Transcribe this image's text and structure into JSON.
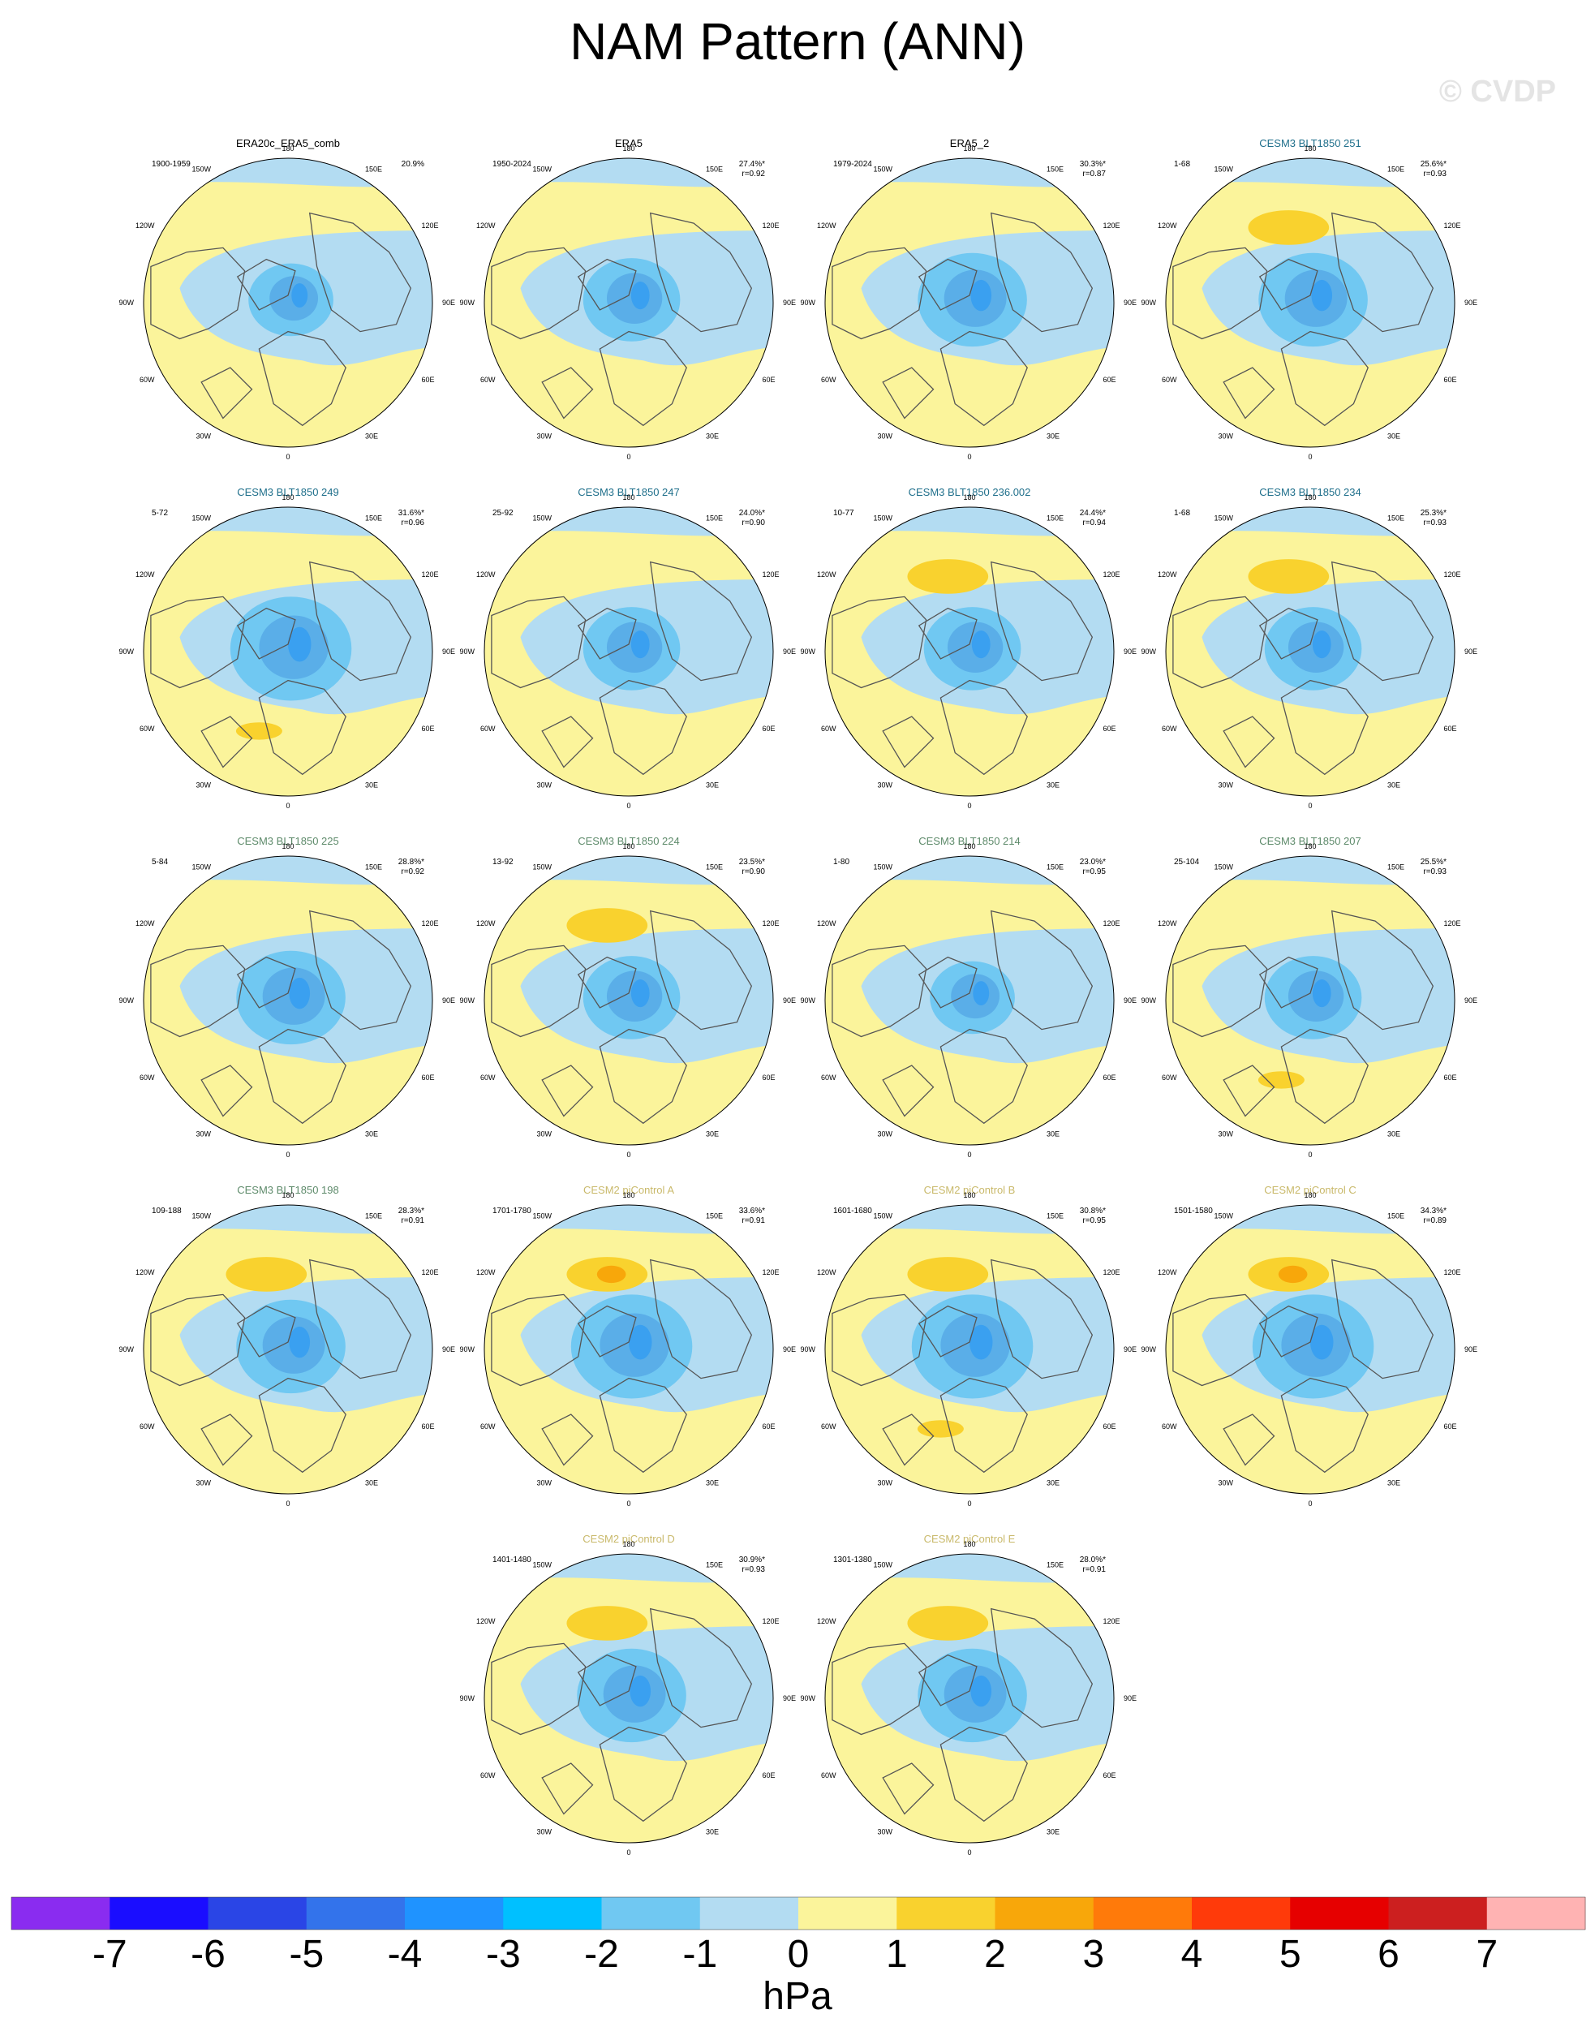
{
  "page": {
    "title": "NAM Pattern (ANN)",
    "watermark": "© CVDP"
  },
  "colors": {
    "ocean_blue": "#b3dcf2",
    "light_yellow": "#fbf49b",
    "coast": "#555555"
  },
  "chart_data": {
    "type": "polar-map-panels",
    "variable": "NAM pattern",
    "units": "hPa",
    "panels": [
      {
        "title": "ERA20c_ERA5_comb",
        "years": "1900-1959",
        "pct": "20.9%",
        "r": "",
        "title_color": "#000000",
        "strength": 0.7,
        "pos": []
      },
      {
        "title": "ERA5",
        "years": "1950-2024",
        "pct": "27.4%*",
        "r": "r=0.92",
        "title_color": "#000000",
        "strength": 0.8,
        "pos": []
      },
      {
        "title": "ERA5_2",
        "years": "1979-2024",
        "pct": "30.3%*",
        "r": "r=0.87",
        "title_color": "#000000",
        "strength": 0.9,
        "pos": []
      },
      {
        "title": "CESM3 BLT1850 251",
        "years": "1-68",
        "pct": "25.6%*",
        "r": "r=0.93",
        "title_color": "#1f6f8b",
        "strength": 0.9,
        "pos": [
          "north"
        ]
      },
      {
        "title": "CESM3 BLT1850 249",
        "years": "5-72",
        "pct": "31.6%*",
        "r": "r=0.96",
        "title_color": "#1f6f8b",
        "strength": 1.0,
        "pos": [
          "atlantic"
        ]
      },
      {
        "title": "CESM3 BLT1850 247",
        "years": "25-92",
        "pct": "24.0%*",
        "r": "r=0.90",
        "title_color": "#1f6f8b",
        "strength": 0.8,
        "pos": []
      },
      {
        "title": "CESM3 BLT1850 236.002",
        "years": "10-77",
        "pct": "24.4%*",
        "r": "r=0.94",
        "title_color": "#1f6f8b",
        "strength": 0.8,
        "pos": [
          "north"
        ]
      },
      {
        "title": "CESM3 BLT1850 234",
        "years": "1-68",
        "pct": "25.3%*",
        "r": "r=0.93",
        "title_color": "#1f6f8b",
        "strength": 0.8,
        "pos": [
          "north"
        ]
      },
      {
        "title": "CESM3 BLT1850 225",
        "years": "5-84",
        "pct": "28.8%*",
        "r": "r=0.92",
        "title_color": "#5d8a6a",
        "strength": 0.9,
        "pos": []
      },
      {
        "title": "CESM3 BLT1850 224",
        "years": "13-92",
        "pct": "23.5%*",
        "r": "r=0.90",
        "title_color": "#5d8a6a",
        "strength": 0.8,
        "pos": [
          "north"
        ]
      },
      {
        "title": "CESM3 BLT1850 214",
        "years": "1-80",
        "pct": "23.0%*",
        "r": "r=0.95",
        "title_color": "#5d8a6a",
        "strength": 0.7,
        "pos": []
      },
      {
        "title": "CESM3 BLT1850 207",
        "years": "25-104",
        "pct": "25.5%*",
        "r": "r=0.93",
        "title_color": "#5d8a6a",
        "strength": 0.8,
        "pos": [
          "atlantic"
        ]
      },
      {
        "title": "CESM3 BLT1850 198",
        "years": "109-188",
        "pct": "28.3%*",
        "r": "r=0.91",
        "title_color": "#5d8a6a",
        "strength": 0.9,
        "pos": [
          "north"
        ]
      },
      {
        "title": "CESM2 piControl A",
        "years": "1701-1780",
        "pct": "33.6%*",
        "r": "r=0.91",
        "title_color": "#c9b96a",
        "strength": 1.0,
        "pos": [
          "north",
          "north_core"
        ]
      },
      {
        "title": "CESM2 piControl B",
        "years": "1601-1680",
        "pct": "30.8%*",
        "r": "r=0.95",
        "title_color": "#c9b96a",
        "strength": 1.0,
        "pos": [
          "north",
          "atlantic"
        ]
      },
      {
        "title": "CESM2 piControl C",
        "years": "1501-1580",
        "pct": "34.3%*",
        "r": "r=0.89",
        "title_color": "#c9b96a",
        "strength": 1.0,
        "pos": [
          "north",
          "north_core"
        ]
      },
      {
        "title": "CESM2 piControl D",
        "years": "1401-1480",
        "pct": "30.9%*",
        "r": "r=0.93",
        "title_color": "#c9b96a",
        "strength": 0.9,
        "pos": [
          "north"
        ]
      },
      {
        "title": "CESM2 piControl E",
        "years": "1301-1380",
        "pct": "28.0%*",
        "r": "r=0.91",
        "title_color": "#c9b96a",
        "strength": 0.9,
        "pos": [
          "north"
        ]
      }
    ],
    "lon_labels": [
      "180",
      "150E",
      "120E",
      "90E",
      "60E",
      "30E",
      "0",
      "30W",
      "60W",
      "90W",
      "120W",
      "150W"
    ],
    "colorbar": {
      "label": "hPa",
      "ticks": [
        "-7",
        "-6",
        "-5",
        "-4",
        "-3",
        "-2",
        "-1",
        "0",
        "1",
        "2",
        "3",
        "4",
        "5",
        "6",
        "7"
      ],
      "colors": [
        "#8a2cf0",
        "#1a0dff",
        "#2a45e6",
        "#3373eb",
        "#1f93ff",
        "#00c0ff",
        "#70c8f2",
        "#b3dcf2",
        "#fbf49b",
        "#f9d22e",
        "#f8a70a",
        "#ff7a0a",
        "#ff3a0a",
        "#e60000",
        "#cc1f1f",
        "#ffb3b3"
      ]
    }
  }
}
